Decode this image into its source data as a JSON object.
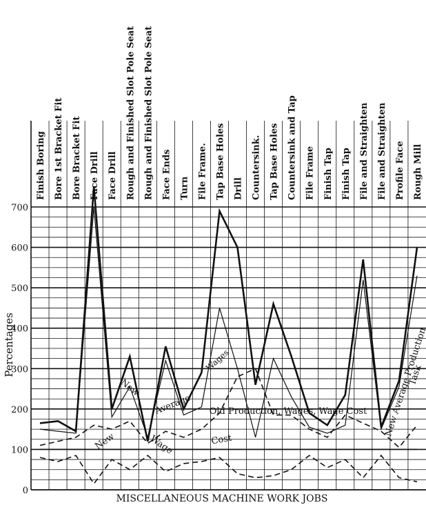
{
  "chart_data": {
    "type": "line",
    "xlabel": "MISCELLANEOUS MACHINE WORK JOBS",
    "ylabel": "Percentages",
    "ylim": [
      0,
      700
    ],
    "yticks": [
      "0",
      "100",
      "200",
      "300",
      "400",
      "500",
      "600",
      "700"
    ],
    "grid": "horizontal rules every 25; vertical rule per job",
    "categories": [
      "Finish Boring",
      "Bore 1st Bracket Fit",
      "Bore Bracket Fit",
      "Face Drill",
      "Face Drill",
      "Rough and Finished Slot Pole Seat",
      "Rough and Finished Slot Pole Seat",
      "Face Ends",
      "Turn",
      "File Frame.",
      "Tap Base Holes",
      "Drill",
      "Countersink.",
      "Tap Base Holes",
      "Countersink and Tap",
      "File Frame",
      "Finish Tap",
      "Finish Tap",
      "File and Straighten",
      "File and Straighten",
      "Profile Face",
      "Rough Mill"
    ],
    "series": [
      {
        "name": "Task",
        "style": "thick solid",
        "values": [
          165,
          170,
          145,
          750,
          200,
          330,
          120,
          355,
          200,
          290,
          690,
          600,
          260,
          460,
          330,
          190,
          160,
          235,
          570,
          155,
          270,
          600
        ]
      },
      {
        "name": "New Average Production",
        "style": "thin solid",
        "values": [
          150,
          145,
          140,
          700,
          180,
          255,
          130,
          320,
          185,
          205,
          450,
          300,
          130,
          325,
          230,
          155,
          140,
          160,
          520,
          150,
          255,
          530
        ]
      },
      {
        "name": "New Average Wages",
        "style": "dashed",
        "values": [
          110,
          120,
          130,
          160,
          150,
          170,
          115,
          145,
          130,
          150,
          190,
          280,
          300,
          185,
          185,
          150,
          130,
          185,
          165,
          145,
          105,
          160
        ]
      },
      {
        "name": "Old Production, Wages, Wage Cost",
        "style": "solid",
        "values": [
          100,
          100,
          100,
          100,
          100,
          100,
          100,
          100,
          100,
          100,
          100,
          100,
          100,
          100,
          100,
          100,
          100,
          100,
          100,
          100,
          100,
          100
        ]
      },
      {
        "name": "New Wage Cost",
        "style": "dashed",
        "values": [
          80,
          70,
          85,
          15,
          75,
          50,
          85,
          45,
          65,
          70,
          80,
          40,
          30,
          35,
          50,
          85,
          55,
          75,
          30,
          85,
          30,
          20
        ]
      }
    ],
    "annotations": [
      {
        "text": "New Average Production",
        "series": "New Average Production"
      },
      {
        "text": "Task",
        "series": "Task"
      },
      {
        "text": "Wages",
        "series": "New Average Wages"
      },
      {
        "text": "New",
        "series": "New Average Wages"
      },
      {
        "text": "Average",
        "series": "New Average Wages"
      },
      {
        "text": "Old Production, Wages, Wage Cost",
        "series": "Old Production, Wages, Wage Cost"
      },
      {
        "text": "New",
        "series": "New Wage Cost"
      },
      {
        "text": "Wage",
        "series": "New Wage Cost"
      },
      {
        "text": "Cost",
        "series": "New Wage Cost"
      }
    ],
    "colors": {
      "ink": "#111111",
      "paper": "#ffffff"
    }
  }
}
